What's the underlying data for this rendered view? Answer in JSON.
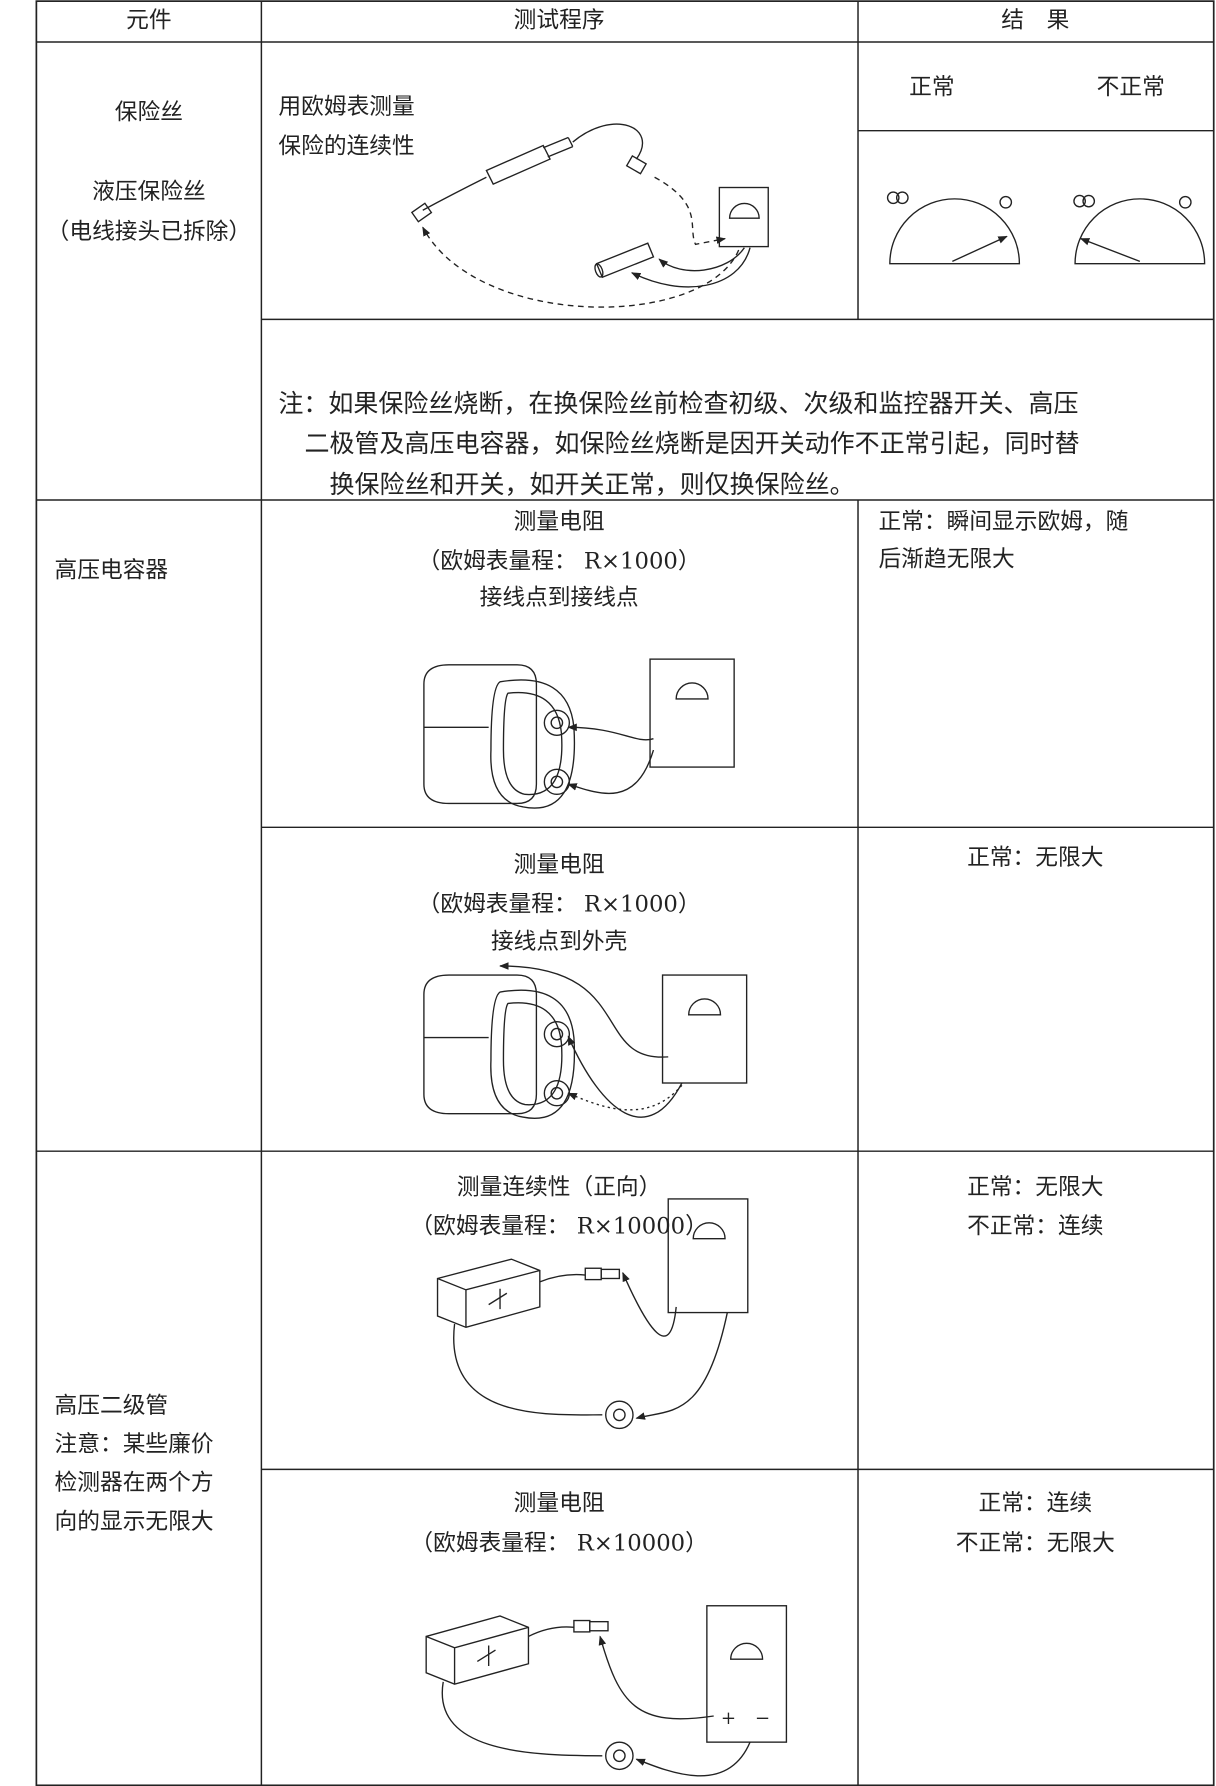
{
  "table": {
    "header": [
      "元件",
      "测试程序",
      "结　果"
    ],
    "sections": [
      {
        "component": [
          "保险丝",
          "液压保险丝",
          "（电线接头已拆除）"
        ],
        "procedure": [
          "用欧姆表测量",
          "保险的连续性"
        ],
        "result_labels": [
          "正常",
          "不正常"
        ],
        "note": [
          "注：如果保险丝烧断，在换保险丝前检查初级、次级和监控器开关、高压",
          "二极管及高压电容器，如保险丝烧断是因开关动作不正常引起，同时替",
          "换保险丝和开关，如开关正常，则仅换保险丝。"
        ]
      },
      {
        "component": [
          "高压电容器"
        ],
        "tests": [
          {
            "procedure": [
              "测量电阻",
              "（欧姆表量程： R×1000）",
              "接线点到接线点"
            ],
            "result": [
              "正常：瞬间显示欧姆，随",
              "后渐趋无限大"
            ]
          },
          {
            "procedure": [
              "测量电阻",
              "（欧姆表量程： R×1000）",
              "接线点到外壳"
            ],
            "result": [
              "正常：无限大"
            ]
          }
        ]
      },
      {
        "component": [
          "高压二级管",
          "注意：某些廉价",
          "检测器在两个方",
          "向的显示无限大"
        ],
        "tests": [
          {
            "procedure": [
              "测量连续性（正向）",
              "（欧姆表量程： R×10000）"
            ],
            "result": [
              "正常：无限大",
              "不正常：连续"
            ]
          },
          {
            "procedure": [
              "测量电阻",
              "（欧姆表量程： R×10000）"
            ],
            "result": [
              "正常：连续",
              "不正常：无限大"
            ]
          }
        ]
      }
    ]
  }
}
